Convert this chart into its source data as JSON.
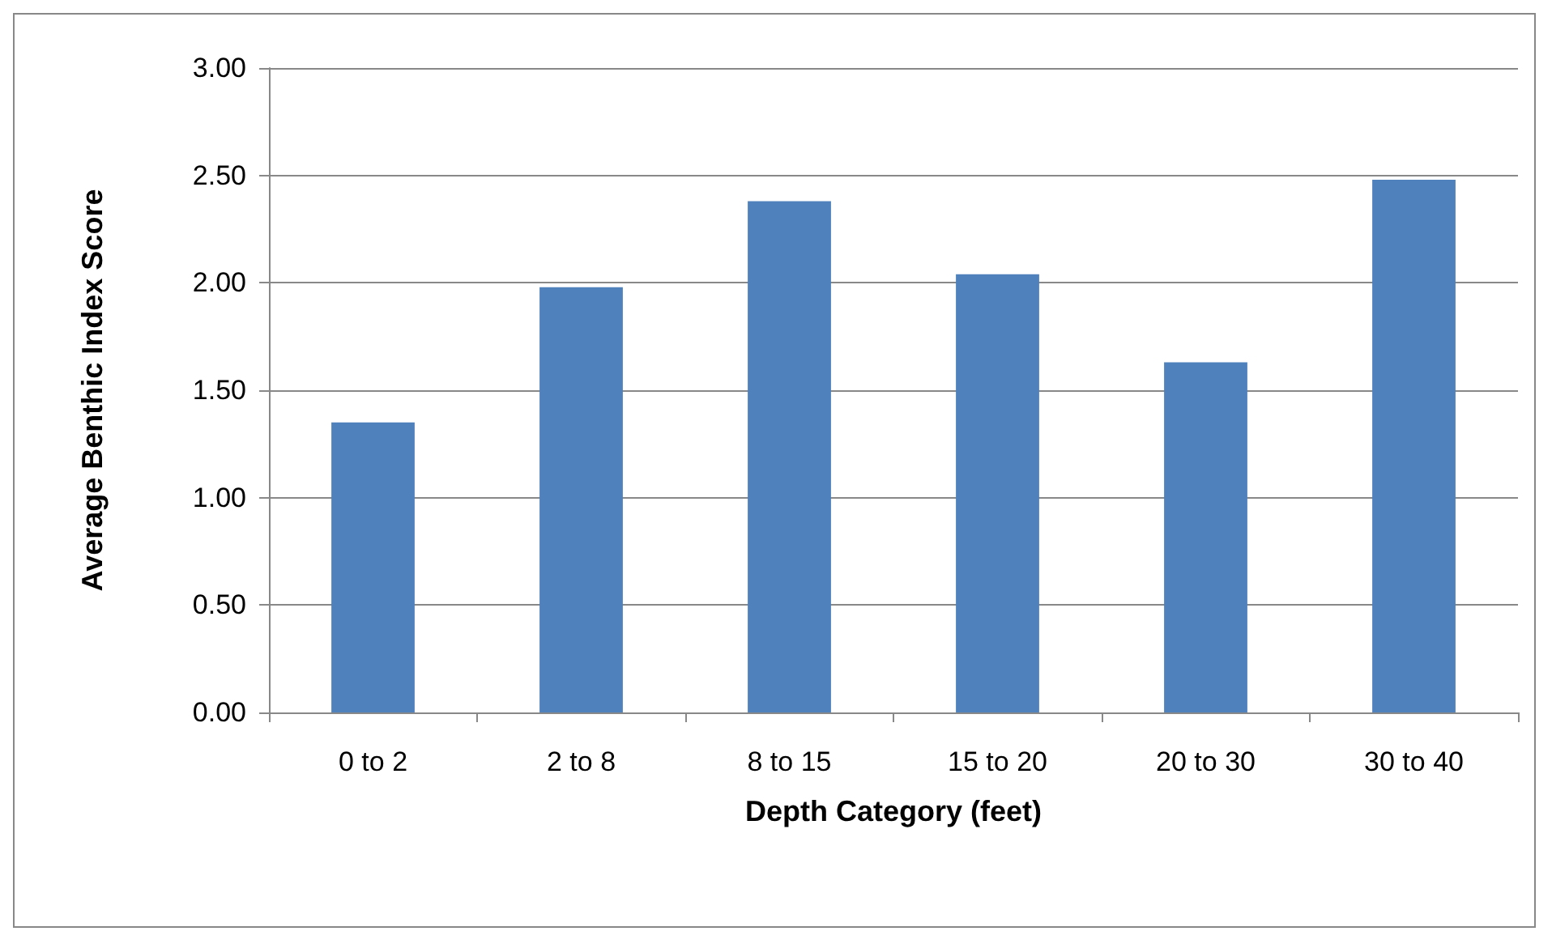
{
  "chart_data": {
    "type": "bar",
    "xlabel": "Depth Category (feet)",
    "ylabel": "Average Benthic Index Score",
    "categories": [
      "0 to 2",
      "2 to 8",
      "8 to 15",
      "15 to 20",
      "20 to 30",
      "30 to 40"
    ],
    "values": [
      1.35,
      1.98,
      2.38,
      2.04,
      1.63,
      2.48
    ],
    "color": "#4f81bd",
    "ylim": [
      0,
      3
    ],
    "yticks": [
      {
        "value": 0,
        "label": "0.00"
      },
      {
        "value": 0.5,
        "label": "0.50"
      },
      {
        "value": 1,
        "label": "1.00"
      },
      {
        "value": 1.5,
        "label": "1.50"
      },
      {
        "value": 2,
        "label": "2.00"
      },
      {
        "value": 2.5,
        "label": "2.50"
      },
      {
        "value": 3,
        "label": "3.00"
      }
    ],
    "grid": "y"
  }
}
